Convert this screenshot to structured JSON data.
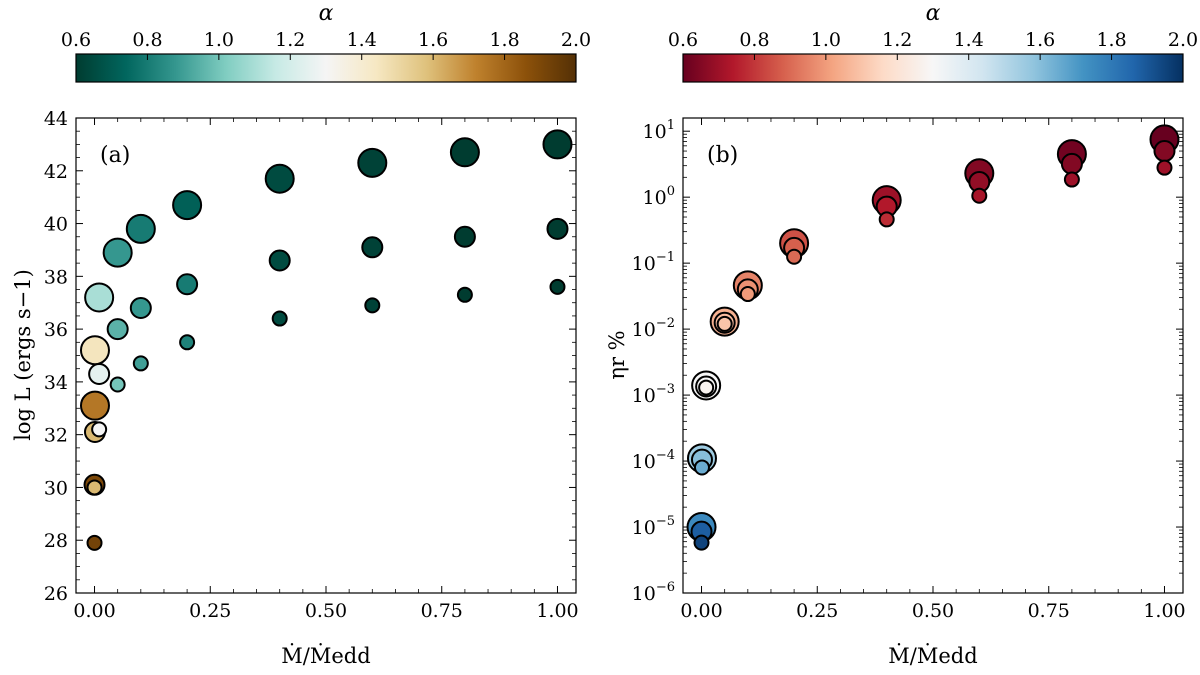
{
  "chart_data": [
    {
      "type": "scatter",
      "panel_label": "(a)",
      "xlabel": "Ṁ/Ṁedd",
      "ylabel": "log L (ergs s−1)",
      "xlim": [
        -0.04,
        1.04
      ],
      "ylim": [
        26,
        44
      ],
      "x_ticks": [
        0.0,
        0.25,
        0.5,
        0.75,
        1.0
      ],
      "x_tick_labels": [
        "0.00",
        "0.25",
        "0.50",
        "0.75",
        "1.00"
      ],
      "y_ticks": [
        26,
        28,
        30,
        32,
        34,
        36,
        38,
        40,
        42,
        44
      ],
      "y_tick_labels": [
        "26",
        "28",
        "30",
        "32",
        "34",
        "36",
        "38",
        "40",
        "42",
        "44"
      ],
      "log_y": false,
      "grid": false,
      "colorbar": {
        "label": "α",
        "range": [
          0.6,
          2.0
        ],
        "ticks": [
          0.6,
          0.8,
          1.0,
          1.2,
          1.4,
          1.6,
          1.8,
          2.0
        ],
        "tick_labels": [
          "0.6",
          "0.8",
          "1.0",
          "1.2",
          "1.4",
          "1.6",
          "1.8",
          "2.0"
        ],
        "colormap": [
          "#003c30",
          "#01665e",
          "#35978f",
          "#80cdc1",
          "#c7eae5",
          "#f5f5f5",
          "#f6e8c3",
          "#dfc27d",
          "#bf812d",
          "#8c510a",
          "#543005"
        ]
      },
      "points": [
        {
          "x": 1.0,
          "y": 43.0,
          "alpha": 0.6,
          "size": 3
        },
        {
          "x": 1.0,
          "y": 39.8,
          "alpha": 0.6,
          "size": 2
        },
        {
          "x": 1.0,
          "y": 37.6,
          "alpha": 0.6,
          "size": 1
        },
        {
          "x": 0.8,
          "y": 42.7,
          "alpha": 0.6,
          "size": 3
        },
        {
          "x": 0.8,
          "y": 39.5,
          "alpha": 0.6,
          "size": 2
        },
        {
          "x": 0.8,
          "y": 37.3,
          "alpha": 0.6,
          "size": 1
        },
        {
          "x": 0.6,
          "y": 42.3,
          "alpha": 0.62,
          "size": 3
        },
        {
          "x": 0.6,
          "y": 39.1,
          "alpha": 0.62,
          "size": 2
        },
        {
          "x": 0.6,
          "y": 36.9,
          "alpha": 0.62,
          "size": 1
        },
        {
          "x": 0.4,
          "y": 41.7,
          "alpha": 0.65,
          "size": 3
        },
        {
          "x": 0.4,
          "y": 38.6,
          "alpha": 0.65,
          "size": 2
        },
        {
          "x": 0.4,
          "y": 36.4,
          "alpha": 0.65,
          "size": 1
        },
        {
          "x": 0.2,
          "y": 40.7,
          "alpha": 0.72,
          "size": 3
        },
        {
          "x": 0.2,
          "y": 37.7,
          "alpha": 0.8,
          "size": 2
        },
        {
          "x": 0.2,
          "y": 35.5,
          "alpha": 0.82,
          "size": 1
        },
        {
          "x": 0.1,
          "y": 39.8,
          "alpha": 0.8,
          "size": 3
        },
        {
          "x": 0.1,
          "y": 36.8,
          "alpha": 0.88,
          "size": 2
        },
        {
          "x": 0.1,
          "y": 34.7,
          "alpha": 0.9,
          "size": 1
        },
        {
          "x": 0.05,
          "y": 38.9,
          "alpha": 0.88,
          "size": 3
        },
        {
          "x": 0.05,
          "y": 36.0,
          "alpha": 0.95,
          "size": 2
        },
        {
          "x": 0.05,
          "y": 33.9,
          "alpha": 1.0,
          "size": 1
        },
        {
          "x": 0.01,
          "y": 37.2,
          "alpha": 1.1,
          "size": 3
        },
        {
          "x": 0.01,
          "y": 34.3,
          "alpha": 1.25,
          "size": 2
        },
        {
          "x": 0.01,
          "y": 32.2,
          "alpha": 1.3,
          "size": 1
        },
        {
          "x": 0.001,
          "y": 35.2,
          "alpha": 1.45,
          "size": 3
        },
        {
          "x": 0.001,
          "y": 33.1,
          "alpha": 1.75,
          "size": 3
        },
        {
          "x": 0.001,
          "y": 32.1,
          "alpha": 1.6,
          "size": 2
        },
        {
          "x": 0.0,
          "y": 30.1,
          "alpha": 1.9,
          "size": 2
        },
        {
          "x": 0.0,
          "y": 30.0,
          "alpha": 1.6,
          "size": 1
        },
        {
          "x": 0.0,
          "y": 27.9,
          "alpha": 1.92,
          "size": 1
        }
      ]
    },
    {
      "type": "scatter",
      "panel_label": "(b)",
      "xlabel": "Ṁ/Ṁedd",
      "ylabel": "ηr %",
      "xlim": [
        -0.04,
        1.04
      ],
      "ylim": [
        -6,
        1.2
      ],
      "x_ticks": [
        0.0,
        0.25,
        0.5,
        0.75,
        1.0
      ],
      "x_tick_labels": [
        "0.00",
        "0.25",
        "0.50",
        "0.75",
        "1.00"
      ],
      "y_ticks": [
        -6,
        -5,
        -4,
        -3,
        -2,
        -1,
        0,
        1
      ],
      "y_tick_bases": [
        "10",
        "10",
        "10",
        "10",
        "10",
        "10",
        "10",
        "10"
      ],
      "y_tick_exponents": [
        "−6",
        "−5",
        "−4",
        "−3",
        "−2",
        "−1",
        "0",
        "1"
      ],
      "log_y": true,
      "grid": false,
      "colorbar": {
        "label": "α",
        "range": [
          0.6,
          2.0
        ],
        "ticks": [
          0.6,
          0.8,
          1.0,
          1.2,
          1.4,
          1.6,
          1.8,
          2.0
        ],
        "tick_labels": [
          "0.6",
          "0.8",
          "1.0",
          "1.2",
          "1.4",
          "1.6",
          "1.8",
          "2.0"
        ],
        "colormap": [
          "#67001f",
          "#b2182b",
          "#d6604d",
          "#f4a582",
          "#fddbc7",
          "#f7f7f7",
          "#d1e5f0",
          "#92c5de",
          "#4393c3",
          "#2166ac",
          "#053061"
        ]
      },
      "points": [
        {
          "x": 1.0,
          "y": 7.5,
          "alpha": 0.6,
          "size": 3
        },
        {
          "x": 1.0,
          "y": 5.0,
          "alpha": 0.65,
          "size": 2
        },
        {
          "x": 1.0,
          "y": 2.8,
          "alpha": 0.7,
          "size": 1
        },
        {
          "x": 0.8,
          "y": 4.5,
          "alpha": 0.62,
          "size": 3
        },
        {
          "x": 0.8,
          "y": 3.2,
          "alpha": 0.65,
          "size": 2
        },
        {
          "x": 0.8,
          "y": 1.85,
          "alpha": 0.7,
          "size": 1
        },
        {
          "x": 0.6,
          "y": 2.3,
          "alpha": 0.65,
          "size": 3
        },
        {
          "x": 0.6,
          "y": 1.7,
          "alpha": 0.68,
          "size": 2
        },
        {
          "x": 0.6,
          "y": 1.05,
          "alpha": 0.72,
          "size": 1
        },
        {
          "x": 0.4,
          "y": 0.9,
          "alpha": 0.7,
          "size": 3
        },
        {
          "x": 0.4,
          "y": 0.72,
          "alpha": 0.74,
          "size": 2
        },
        {
          "x": 0.4,
          "y": 0.46,
          "alpha": 0.78,
          "size": 1
        },
        {
          "x": 0.2,
          "y": 0.2,
          "alpha": 0.85,
          "size": 3
        },
        {
          "x": 0.2,
          "y": 0.17,
          "alpha": 0.88,
          "size": 2
        },
        {
          "x": 0.2,
          "y": 0.125,
          "alpha": 0.9,
          "size": 1
        },
        {
          "x": 0.1,
          "y": 0.046,
          "alpha": 0.95,
          "size": 3
        },
        {
          "x": 0.1,
          "y": 0.04,
          "alpha": 0.98,
          "size": 2
        },
        {
          "x": 0.1,
          "y": 0.034,
          "alpha": 1.0,
          "size": 1
        },
        {
          "x": 0.05,
          "y": 0.013,
          "alpha": 1.05,
          "size": 3
        },
        {
          "x": 0.05,
          "y": 0.0125,
          "alpha": 1.08,
          "size": 2
        },
        {
          "x": 0.05,
          "y": 0.012,
          "alpha": 1.1,
          "size": 1
        },
        {
          "x": 0.01,
          "y": 0.0014,
          "alpha": 1.3,
          "size": 3
        },
        {
          "x": 0.01,
          "y": 0.00135,
          "alpha": 1.3,
          "size": 2
        },
        {
          "x": 0.01,
          "y": 0.0013,
          "alpha": 1.28,
          "size": 1
        },
        {
          "x": 0.001,
          "y": 0.00011,
          "alpha": 1.55,
          "size": 3
        },
        {
          "x": 0.001,
          "y": 0.000105,
          "alpha": 1.6,
          "size": 2
        },
        {
          "x": 0.001,
          "y": 8e-05,
          "alpha": 1.65,
          "size": 1
        },
        {
          "x": 0.0,
          "y": 1e-05,
          "alpha": 1.75,
          "size": 3
        },
        {
          "x": 0.0,
          "y": 8.5e-06,
          "alpha": 1.88,
          "size": 2
        },
        {
          "x": 0.0,
          "y": 5.8e-06,
          "alpha": 1.95,
          "size": 1
        }
      ]
    }
  ]
}
